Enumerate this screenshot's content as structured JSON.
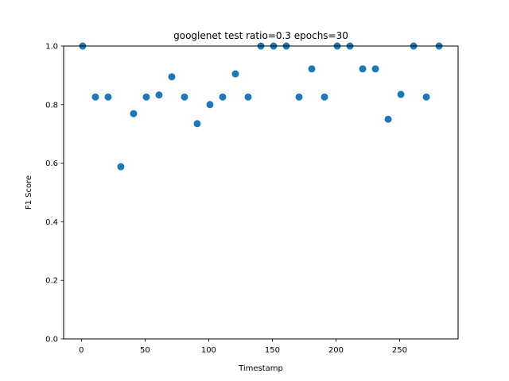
{
  "chart_data": {
    "type": "scatter",
    "title": "googlenet test ratio=0.3 epochs=30",
    "xlabel": "Timestamp",
    "ylabel": "F1 Score",
    "xlim": [
      -13.95,
      295.95
    ],
    "ylim": [
      0.0,
      1.0
    ],
    "xticks": [
      0,
      50,
      100,
      150,
      200,
      250
    ],
    "xtick_labels": [
      "0",
      "50",
      "100",
      "150",
      "200",
      "250"
    ],
    "yticks": [
      0.0,
      0.2,
      0.4,
      0.6,
      0.8,
      1.0
    ],
    "ytick_labels": [
      "0.0",
      "0.2",
      "0.4",
      "0.6",
      "0.8",
      "1.0"
    ],
    "grid": false,
    "legend": null,
    "series": [
      {
        "color": "#1f77b4",
        "x": [
          1,
          11,
          21,
          31,
          41,
          51,
          61,
          71,
          81,
          91,
          101,
          111,
          121,
          131,
          141,
          151,
          161,
          171,
          181,
          191,
          201,
          211,
          221,
          231,
          241,
          251,
          261,
          271,
          281
        ],
        "y": [
          1.0,
          0.826,
          0.826,
          0.588,
          0.769,
          0.826,
          0.833,
          0.895,
          0.826,
          0.735,
          0.8,
          0.826,
          0.905,
          0.826,
          1.0,
          1.0,
          1.0,
          0.826,
          0.922,
          0.826,
          1.0,
          1.0,
          0.922,
          0.922,
          0.75,
          0.835,
          1.0,
          0.826,
          1.0
        ]
      }
    ]
  }
}
